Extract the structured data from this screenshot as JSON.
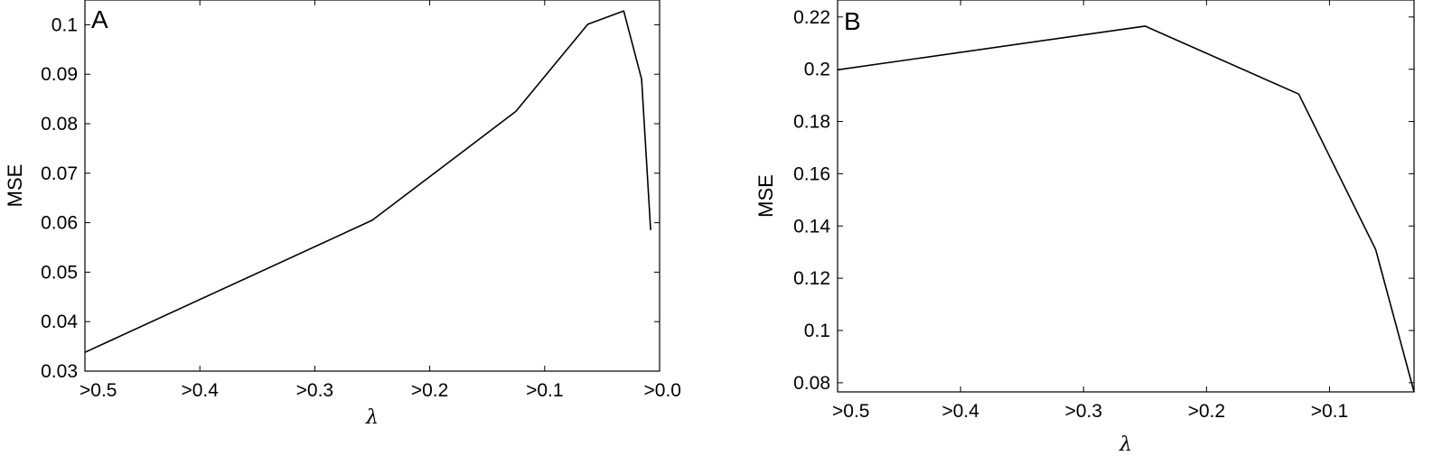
{
  "chart_data": [
    {
      "type": "line",
      "panel_label": "A",
      "xlabel": "λ",
      "ylabel": "MSE",
      "x": [
        0.5,
        0.25,
        0.125,
        0.0625,
        0.03125,
        0.015625,
        0.0078125
      ],
      "series": [
        {
          "values": [
            0.0338,
            0.0605,
            0.0825,
            0.1001,
            0.1028,
            0.089,
            0.0585
          ],
          "color": "#000000"
        }
      ],
      "xlim": [
        0.5,
        0.0
      ],
      "ylim": [
        0.03,
        0.105
      ],
      "xticks": [
        0.5,
        0.4,
        0.3,
        0.2,
        0.1,
        0.0
      ],
      "xtick_labels": [
        ">0.5",
        ">0.4",
        ">0.3",
        ">0.2",
        ">0.1",
        ">0.0"
      ],
      "yticks": [
        0.03,
        0.04,
        0.05,
        0.06,
        0.07,
        0.08,
        0.09,
        0.1
      ],
      "ytick_labels": [
        "0.03",
        "0.04",
        "0.05",
        "0.06",
        "0.07",
        "0.08",
        "0.09",
        "0.1"
      ],
      "grid": false,
      "legend": "none"
    },
    {
      "type": "line",
      "panel_label": "B",
      "xlabel": "λ",
      "ylabel": "MSE",
      "x": [
        0.5,
        0.25,
        0.125,
        0.0625,
        0.03125
      ],
      "series": [
        {
          "values": [
            0.1998,
            0.2165,
            0.1905,
            0.131,
            0.0765
          ],
          "color": "#000000"
        }
      ],
      "xlim": [
        0.5,
        0.03125
      ],
      "ylim": [
        0.0765,
        0.2265
      ],
      "xticks": [
        0.5,
        0.4,
        0.3,
        0.2,
        0.1
      ],
      "xtick_labels": [
        ">0.5",
        ">0.4",
        ">0.3",
        ">0.2",
        ">0.1"
      ],
      "yticks": [
        0.08,
        0.1,
        0.12,
        0.14,
        0.16,
        0.18,
        0.2,
        0.22
      ],
      "ytick_labels": [
        "0.08",
        "0.1",
        "0.12",
        "0.14",
        "0.16",
        "0.18",
        "0.2",
        "0.22"
      ],
      "grid": false,
      "legend": "none"
    }
  ]
}
